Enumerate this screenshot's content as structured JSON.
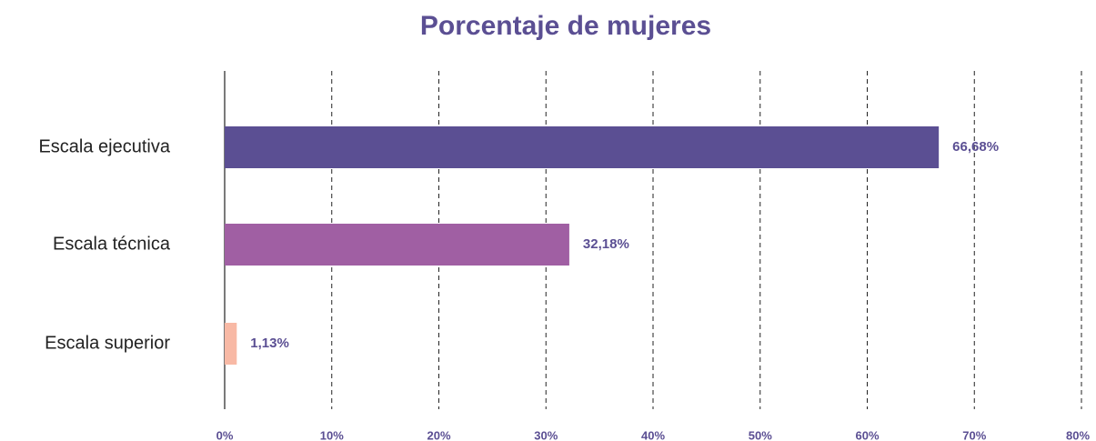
{
  "chart_data": {
    "type": "barh",
    "title": "Porcentaje de mujeres",
    "categories": [
      "Escala ejecutiva",
      "Escala técnica",
      "Escala superior"
    ],
    "values": [
      66.68,
      32.18,
      1.13
    ],
    "value_labels": [
      "66,68%",
      "32,18%",
      "1,13%"
    ],
    "colors": [
      "#5b4f93",
      "#a05fa3",
      "#f8b9a5"
    ],
    "xlim": [
      0,
      80
    ],
    "xticks": [
      {
        "value": 0,
        "label": "0%"
      },
      {
        "value": 10,
        "label": "10%"
      },
      {
        "value": 20,
        "label": "20%"
      },
      {
        "value": 30,
        "label": "30%"
      },
      {
        "value": 40,
        "label": "40%"
      },
      {
        "value": 50,
        "label": "50%"
      },
      {
        "value": 60,
        "label": "60%"
      },
      {
        "value": 70,
        "label": "70%"
      },
      {
        "value": 80,
        "label": "80%"
      }
    ],
    "grid": true
  }
}
